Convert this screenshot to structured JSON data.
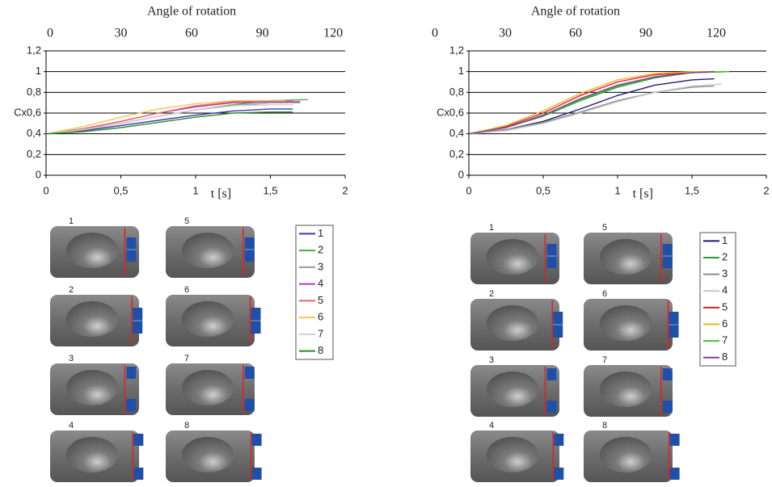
{
  "chart_data": [
    {
      "type": "line",
      "x2label": "Angle of rotation",
      "xlabel": "t [s]",
      "ylabel": "Cx",
      "xlim": [
        0,
        2
      ],
      "xticks": [
        0,
        {
          "value": 0.5,
          "label": "0,5"
        },
        1,
        {
          "value": 1.5,
          "label": "1,5"
        },
        2
      ],
      "x2lim": [
        -1.7,
        125.1
      ],
      "x2ticks": [
        0,
        30,
        60,
        90,
        120
      ],
      "ylim": [
        0,
        1.2
      ],
      "yticks": [
        0,
        {
          "value": 0.2,
          "label": "0,2"
        },
        {
          "value": 0.4,
          "label": "0,4"
        },
        {
          "value": 0.6,
          "label": "0,6"
        },
        {
          "value": 0.8,
          "label": "0,8"
        },
        1,
        {
          "value": 1.2,
          "label": "1,2"
        }
      ],
      "grid": true,
      "series": [
        {
          "name": "1",
          "color": "#3a3aa8",
          "x": [
            0,
            0.25,
            0.5,
            0.75,
            1,
            1.25,
            1.5,
            1.65
          ],
          "values": [
            0.4,
            0.43,
            0.48,
            0.53,
            0.58,
            0.62,
            0.64,
            0.64
          ]
        },
        {
          "name": "2",
          "color": "#3cb043",
          "x": [
            0,
            0.25,
            0.5,
            0.75,
            1,
            1.25,
            1.5,
            1.75
          ],
          "values": [
            0.4,
            0.44,
            0.5,
            0.57,
            0.63,
            0.68,
            0.72,
            0.73
          ]
        },
        {
          "name": "3",
          "color": "#9a9a9a",
          "x": [
            0,
            0.25,
            0.5,
            0.75,
            1,
            1.25,
            1.5,
            1.7
          ],
          "values": [
            0.4,
            0.44,
            0.5,
            0.57,
            0.63,
            0.67,
            0.7,
            0.7
          ]
        },
        {
          "name": "4",
          "color": "#b23ab2",
          "x": [
            0,
            0.25,
            0.5,
            0.75,
            1,
            1.25,
            1.5,
            1.7
          ],
          "values": [
            0.4,
            0.45,
            0.52,
            0.6,
            0.66,
            0.7,
            0.71,
            0.71
          ]
        },
        {
          "name": "5",
          "color": "#f06070",
          "x": [
            0,
            0.25,
            0.5,
            0.75,
            1,
            1.25,
            1.5,
            1.65
          ],
          "values": [
            0.4,
            0.45,
            0.52,
            0.6,
            0.67,
            0.71,
            0.72,
            0.72
          ]
        },
        {
          "name": "6",
          "color": "#f0c850",
          "x": [
            0,
            0.25,
            0.5,
            0.75,
            1,
            1.25,
            1.5,
            1.6
          ],
          "values": [
            0.4,
            0.47,
            0.56,
            0.64,
            0.69,
            0.72,
            0.72,
            0.72
          ]
        },
        {
          "name": "7",
          "color": "#d0d0d0",
          "x": [
            0,
            0.25,
            0.5,
            0.75,
            1,
            1.25,
            1.5,
            1.65
          ],
          "values": [
            0.4,
            0.44,
            0.5,
            0.57,
            0.63,
            0.67,
            0.68,
            0.68
          ]
        },
        {
          "name": "8",
          "color": "#2a8a2a",
          "x": [
            0,
            0.25,
            0.5,
            0.75,
            1,
            1.25,
            1.5,
            1.65
          ],
          "values": [
            0.4,
            0.42,
            0.46,
            0.51,
            0.56,
            0.6,
            0.61,
            0.61
          ]
        }
      ]
    },
    {
      "type": "line",
      "x2label": "Angle of rotation",
      "xlabel": "t [s]",
      "ylabel": "Cx",
      "xlim": [
        0,
        2
      ],
      "xticks": [
        0,
        {
          "value": 0.5,
          "label": "0,5"
        },
        1,
        {
          "value": 1.5,
          "label": "1,5"
        },
        2
      ],
      "x2lim": [
        14.5,
        141.4
      ],
      "x2ticks": [
        0,
        30,
        60,
        90,
        120
      ],
      "ylim": [
        0,
        1.2
      ],
      "yticks": [
        0,
        {
          "value": 0.2,
          "label": "0,2"
        },
        {
          "value": 0.4,
          "label": "0,4"
        },
        {
          "value": 0.6,
          "label": "0,6"
        },
        {
          "value": 0.8,
          "label": "0,8"
        },
        1,
        {
          "value": 1.2,
          "label": "1,2"
        }
      ],
      "grid": true,
      "series": [
        {
          "name": "1",
          "color": "#1c1c70",
          "x": [
            0,
            0.25,
            0.5,
            0.75,
            1,
            1.25,
            1.5,
            1.65
          ],
          "values": [
            0.4,
            0.44,
            0.52,
            0.64,
            0.77,
            0.87,
            0.92,
            0.93
          ]
        },
        {
          "name": "2",
          "color": "#2a9a3a",
          "x": [
            0,
            0.25,
            0.5,
            0.75,
            1,
            1.25,
            1.5,
            1.75
          ],
          "values": [
            0.4,
            0.46,
            0.57,
            0.72,
            0.85,
            0.94,
            0.99,
            1.0
          ]
        },
        {
          "name": "3",
          "color": "#8a8a8a",
          "x": [
            0,
            0.25,
            0.5,
            0.75,
            1,
            1.25,
            1.5,
            1.65
          ],
          "values": [
            0.4,
            0.44,
            0.51,
            0.61,
            0.72,
            0.8,
            0.85,
            0.86
          ]
        },
        {
          "name": "4",
          "color": "#c8c8c8",
          "x": [
            0,
            0.25,
            0.5,
            0.75,
            1,
            1.25,
            1.5,
            1.7
          ],
          "values": [
            0.4,
            0.43,
            0.5,
            0.6,
            0.71,
            0.8,
            0.86,
            0.88
          ]
        },
        {
          "name": "5",
          "color": "#e02020",
          "x": [
            0,
            0.25,
            0.5,
            0.75,
            1,
            1.25,
            1.5,
            1.7
          ],
          "values": [
            0.4,
            0.47,
            0.6,
            0.77,
            0.9,
            0.97,
            0.99,
            1.0
          ]
        },
        {
          "name": "6",
          "color": "#f0b020",
          "x": [
            0,
            0.25,
            0.5,
            0.75,
            1,
            1.25,
            1.5,
            1.7
          ],
          "values": [
            0.4,
            0.48,
            0.62,
            0.79,
            0.92,
            0.98,
            1.0,
            1.0
          ]
        },
        {
          "name": "7",
          "color": "#40c040",
          "x": [
            0,
            0.25,
            0.5,
            0.75,
            1,
            1.25,
            1.5,
            1.75
          ],
          "values": [
            0.4,
            0.46,
            0.58,
            0.73,
            0.86,
            0.95,
            0.99,
            1.0
          ]
        },
        {
          "name": "8",
          "color": "#8040a0",
          "x": [
            0,
            0.25,
            0.5,
            0.75,
            1,
            1.25,
            1.5,
            1.65
          ],
          "values": [
            0.4,
            0.46,
            0.58,
            0.74,
            0.87,
            0.95,
            0.99,
            1.0
          ]
        }
      ]
    }
  ],
  "car_labels": [
    [
      "1",
      "2",
      "3",
      "4",
      "5",
      "6",
      "7",
      "8"
    ],
    [
      "1",
      "2",
      "3",
      "4",
      "5",
      "6",
      "7",
      "8"
    ]
  ]
}
